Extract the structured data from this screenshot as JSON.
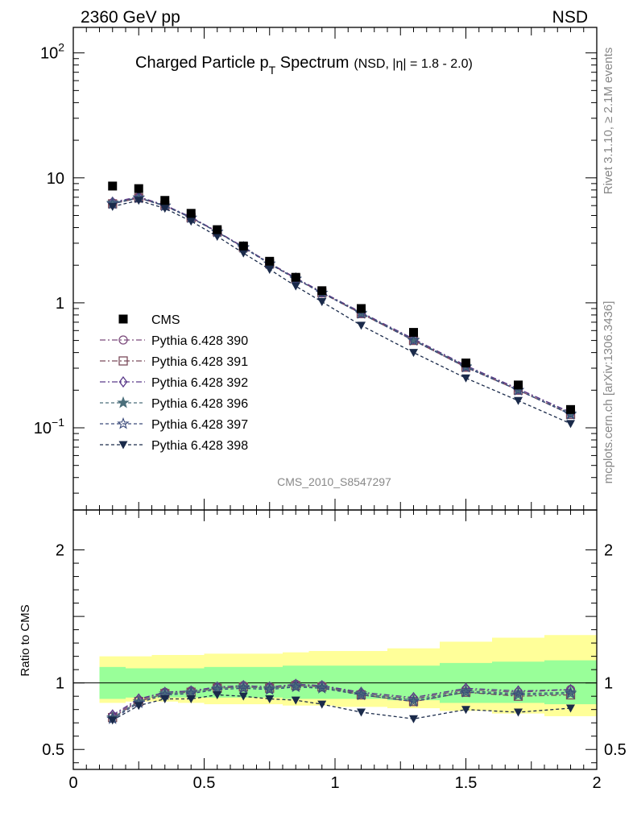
{
  "header": {
    "left": "2360 GeV pp",
    "right": "NSD"
  },
  "title": {
    "main_a": "Charged Particle p",
    "main_sub": "T",
    "main_b": " Spectrum",
    "small": "(NSD, |η| = 1.8 - 2.0)"
  },
  "side": {
    "rivet": "Rivet 3.1.10, ≥ 2.1M events",
    "mcplots": "mcplots.cern.ch [arXiv:1306.3436]"
  },
  "watermark": "CMS_2010_S8547297",
  "ratio_ylabel": "Ratio to CMS",
  "colors": {
    "cms": "#000000",
    "p390": "#7b4a7b",
    "p391": "#7b4a5a",
    "p392": "#5a3a8a",
    "p396": "#4a6e7a",
    "p397": "#3a4a7a",
    "p398": "#1a2a4a",
    "band_inner": "#99ff99",
    "band_outer": "#ffff99"
  },
  "legend": [
    {
      "label": "CMS",
      "key": "cms"
    },
    {
      "label": "Pythia 6.428 390",
      "key": "p390"
    },
    {
      "label": "Pythia 6.428 391",
      "key": "p391"
    },
    {
      "label": "Pythia 6.428 392",
      "key": "p392"
    },
    {
      "label": "Pythia 6.428 396",
      "key": "p396"
    },
    {
      "label": "Pythia 6.428 397",
      "key": "p397"
    },
    {
      "label": "Pythia 6.428 398",
      "key": "p398"
    }
  ],
  "chart_data": {
    "type": "scatter",
    "xlim": [
      0,
      2
    ],
    "ylim_main": [
      0.022,
      160
    ],
    "yscale_main": "log",
    "ylim_ratio": [
      0.35,
      2.3
    ],
    "x_ticks": [
      "0",
      "0.5",
      "1",
      "1.5",
      "2"
    ],
    "y_ticks_main": [
      {
        "v": 0.1,
        "base": "10",
        "exp": "−1"
      },
      {
        "v": 1,
        "base": "1",
        "exp": ""
      },
      {
        "v": 10,
        "base": "10",
        "exp": ""
      },
      {
        "v": 100,
        "base": "10",
        "exp": "2"
      }
    ],
    "y_ticks_ratio": [
      "0.5",
      "1",
      "2"
    ],
    "x": [
      0.15,
      0.25,
      0.35,
      0.45,
      0.55,
      0.65,
      0.75,
      0.85,
      0.95,
      1.1,
      1.3,
      1.5,
      1.7,
      1.9
    ],
    "bin_edges": [
      0.1,
      0.2,
      0.3,
      0.4,
      0.5,
      0.6,
      0.7,
      0.8,
      0.9,
      1.0,
      1.2,
      1.4,
      1.6,
      1.8,
      2.0
    ],
    "cms": [
      8.6,
      8.2,
      6.6,
      5.2,
      3.85,
      2.85,
      2.15,
      1.6,
      1.25,
      0.9,
      0.58,
      0.33,
      0.22,
      0.14
    ],
    "series": [
      {
        "name": "Pythia 6.428 390",
        "key": "p390",
        "marker": "circle",
        "dash": "7,3,2,3",
        "values": [
          6.3,
          7.0,
          6.0,
          4.8,
          3.7,
          2.8,
          2.08,
          1.58,
          1.22,
          0.83,
          0.51,
          0.31,
          0.205,
          0.132
        ]
      },
      {
        "name": "Pythia 6.428 391",
        "key": "p391",
        "marker": "square",
        "dash": "7,3,2,3",
        "values": [
          6.2,
          6.9,
          6.0,
          4.8,
          3.7,
          2.78,
          2.06,
          1.56,
          1.2,
          0.82,
          0.5,
          0.305,
          0.2,
          0.128
        ]
      },
      {
        "name": "Pythia 6.428 392",
        "key": "p392",
        "marker": "diamond",
        "dash": "7,3,2,3",
        "values": [
          6.4,
          7.05,
          6.05,
          4.85,
          3.72,
          2.8,
          2.08,
          1.58,
          1.22,
          0.84,
          0.515,
          0.315,
          0.205,
          0.133
        ]
      },
      {
        "name": "Pythia 6.428 396",
        "key": "p396",
        "marker": "star",
        "dash": "4,3",
        "values": [
          6.3,
          6.95,
          6.0,
          4.8,
          3.7,
          2.78,
          2.06,
          1.56,
          1.2,
          0.83,
          0.505,
          0.31,
          0.2,
          0.13
        ]
      },
      {
        "name": "Pythia 6.428 397",
        "key": "p397",
        "marker": "star-open",
        "dash": "4,3",
        "values": [
          6.2,
          6.9,
          5.95,
          4.78,
          3.68,
          2.76,
          2.05,
          1.55,
          1.2,
          0.82,
          0.5,
          0.305,
          0.2,
          0.128
        ]
      },
      {
        "name": "Pythia 6.428 398",
        "key": "p398",
        "marker": "triangle-down",
        "dash": "4,3",
        "values": [
          5.9,
          6.6,
          5.7,
          4.5,
          3.4,
          2.5,
          1.85,
          1.36,
          1.02,
          0.66,
          0.4,
          0.25,
          0.165,
          0.108
        ]
      }
    ],
    "ratio_series": {
      "p390": [
        0.75,
        0.87,
        0.93,
        0.94,
        0.97,
        0.98,
        0.97,
        0.99,
        0.98,
        0.92,
        0.88,
        0.95,
        0.93,
        0.95
      ],
      "p391": [
        0.74,
        0.86,
        0.92,
        0.93,
        0.96,
        0.97,
        0.96,
        0.98,
        0.97,
        0.91,
        0.86,
        0.93,
        0.9,
        0.91
      ],
      "p392": [
        0.76,
        0.88,
        0.93,
        0.94,
        0.97,
        0.98,
        0.97,
        0.99,
        0.98,
        0.93,
        0.89,
        0.96,
        0.94,
        0.95
      ],
      "p396": [
        0.74,
        0.86,
        0.92,
        0.93,
        0.96,
        0.97,
        0.96,
        0.98,
        0.97,
        0.92,
        0.87,
        0.94,
        0.92,
        0.93
      ],
      "p397": [
        0.73,
        0.85,
        0.91,
        0.92,
        0.95,
        0.96,
        0.95,
        0.97,
        0.96,
        0.91,
        0.86,
        0.93,
        0.91,
        0.92
      ],
      "p398": [
        0.72,
        0.83,
        0.88,
        0.88,
        0.91,
        0.9,
        0.88,
        0.87,
        0.84,
        0.78,
        0.73,
        0.8,
        0.78,
        0.81
      ]
    },
    "band_inner": [
      [
        0.88,
        1.12
      ],
      [
        0.89,
        1.11
      ],
      [
        0.89,
        1.11
      ],
      [
        0.89,
        1.11
      ],
      [
        0.89,
        1.12
      ],
      [
        0.89,
        1.12
      ],
      [
        0.89,
        1.12
      ],
      [
        0.88,
        1.13
      ],
      [
        0.88,
        1.13
      ],
      [
        0.88,
        1.13
      ],
      [
        0.87,
        1.13
      ],
      [
        0.85,
        1.15
      ],
      [
        0.85,
        1.16
      ],
      [
        0.84,
        1.17
      ]
    ],
    "band_outer": [
      [
        0.85,
        1.2
      ],
      [
        0.86,
        1.2
      ],
      [
        0.86,
        1.21
      ],
      [
        0.85,
        1.21
      ],
      [
        0.84,
        1.22
      ],
      [
        0.84,
        1.22
      ],
      [
        0.84,
        1.22
      ],
      [
        0.83,
        1.23
      ],
      [
        0.83,
        1.24
      ],
      [
        0.82,
        1.24
      ],
      [
        0.81,
        1.26
      ],
      [
        0.79,
        1.31
      ],
      [
        0.77,
        1.34
      ],
      [
        0.75,
        1.36
      ]
    ]
  }
}
